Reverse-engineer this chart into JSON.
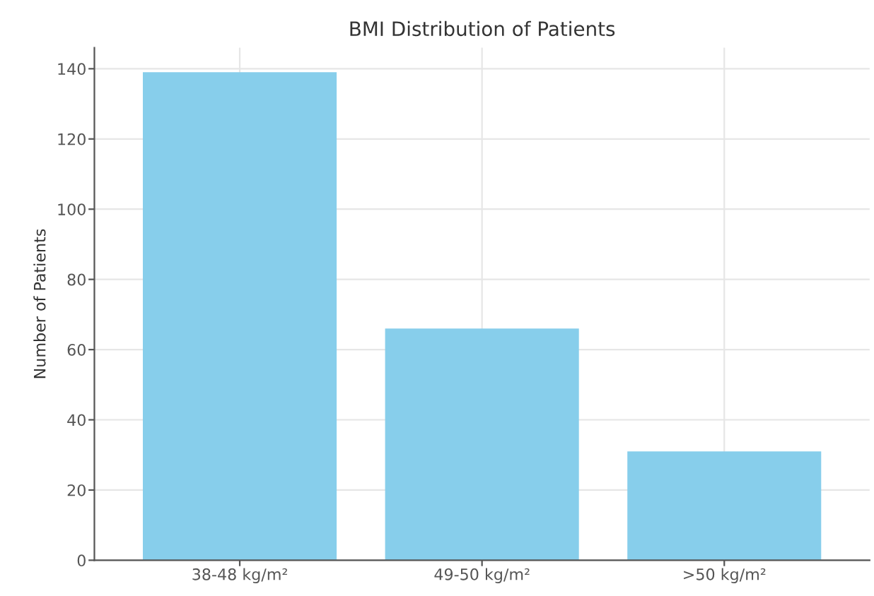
{
  "chart_data": {
    "type": "bar",
    "title": "BMI Distribution of Patients",
    "ylabel": "Number of Patients",
    "categories": [
      "38-48 kg/m²",
      "49-50 kg/m²",
      ">50 kg/m²"
    ],
    "values": [
      139,
      66,
      31
    ],
    "color": "#87ceeb",
    "ylim": [
      0,
      146
    ],
    "yticks": [
      0,
      20,
      40,
      60,
      80,
      100,
      120,
      140
    ],
    "grid": true
  }
}
